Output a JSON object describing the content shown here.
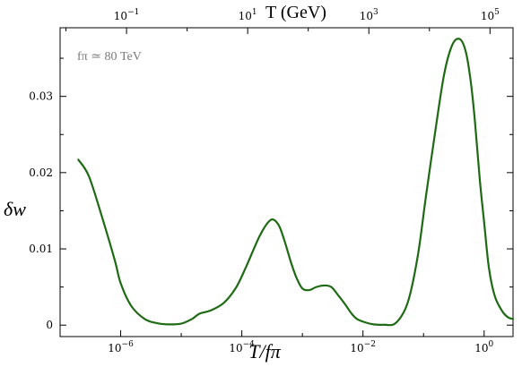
{
  "chart_data": {
    "type": "line",
    "xlabel": "T/fπ",
    "xlabel_top": "T (GeV)",
    "ylabel": "δw",
    "annotation": "fπ ≃ 80 TeV",
    "x_scale": "log",
    "xlim": [
      1e-07,
      3.0
    ],
    "ylim": [
      -0.0015,
      0.039
    ],
    "x_ticks": [
      {
        "value": 1e-06,
        "label": "10−6"
      },
      {
        "value": 0.0001,
        "label": "10−4"
      },
      {
        "value": 0.01,
        "label": "10−2"
      },
      {
        "value": 1,
        "label": "100"
      }
    ],
    "top_ticks": [
      {
        "value": 1.25e-06,
        "label": "10−1"
      },
      {
        "value": 0.000125,
        "label": "101"
      },
      {
        "value": 0.0125,
        "label": "103"
      },
      {
        "value": 1.25,
        "label": "105"
      }
    ],
    "y_ticks": [
      {
        "value": 0,
        "label": "0"
      },
      {
        "value": 0.01,
        "label": "0.01"
      },
      {
        "value": 0.02,
        "label": "0.02"
      },
      {
        "value": 0.03,
        "label": "0.03"
      }
    ],
    "grid": false,
    "series": [
      {
        "color": "#1e6b14",
        "x": [
          2e-07,
          3e-07,
          5e-07,
          8e-07,
          1e-06,
          1.5e-06,
          2.5e-06,
          4e-06,
          6e-06,
          1e-05,
          1.5e-05,
          2e-05,
          3e-05,
          5e-05,
          8e-05,
          0.00012,
          0.0002,
          0.0003,
          0.0004,
          0.0005,
          0.00065,
          0.0008,
          0.001,
          0.0013,
          0.0017,
          0.0023,
          0.003,
          0.004,
          0.005,
          0.0065,
          0.008,
          0.011,
          0.015,
          0.022,
          0.035,
          0.055,
          0.08,
          0.11,
          0.16,
          0.22,
          0.3,
          0.4,
          0.5,
          0.6,
          0.7,
          0.85,
          1.0,
          1.2,
          1.5,
          2.0,
          2.5,
          3.0
        ],
        "y": [
          0.0217,
          0.0195,
          0.014,
          0.0085,
          0.0055,
          0.0025,
          0.0008,
          0.00025,
          0.0001,
          0.0002,
          0.0008,
          0.0015,
          0.0019,
          0.0029,
          0.0049,
          0.0078,
          0.0118,
          0.0138,
          0.0132,
          0.0112,
          0.0082,
          0.0062,
          0.0048,
          0.0046,
          0.005,
          0.0052,
          0.005,
          0.0038,
          0.0028,
          0.0015,
          0.0008,
          0.00035,
          0.0001,
          5e-05,
          0.0003,
          0.003,
          0.009,
          0.017,
          0.026,
          0.033,
          0.0368,
          0.0375,
          0.0358,
          0.032,
          0.027,
          0.019,
          0.0135,
          0.0075,
          0.0038,
          0.0018,
          0.001,
          0.0008
        ]
      }
    ]
  }
}
